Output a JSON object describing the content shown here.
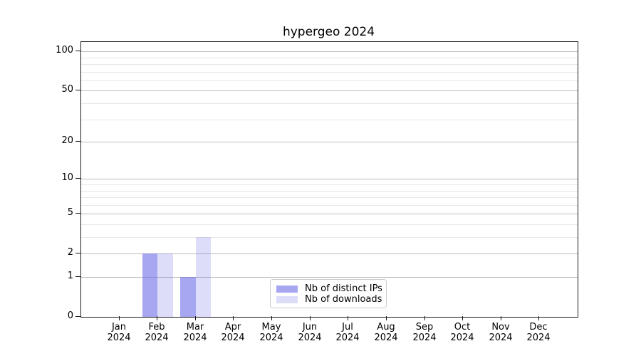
{
  "chart_data": {
    "type": "bar",
    "title": "hypergeo 2024",
    "x": {
      "months": [
        "Jan",
        "Feb",
        "Mar",
        "Apr",
        "May",
        "Jun",
        "Jul",
        "Aug",
        "Sep",
        "Oct",
        "Nov",
        "Dec"
      ],
      "year": "2024"
    },
    "series": [
      {
        "name": "Nb of distinct IPs",
        "color": "rgba(100,100,230,0.57)",
        "values": [
          0,
          2,
          1,
          0,
          0,
          0,
          0,
          0,
          0,
          0,
          0,
          0
        ]
      },
      {
        "name": "Nb of downloads",
        "color": "rgba(100,100,230,0.22)",
        "values": [
          0,
          2,
          3,
          0,
          0,
          0,
          0,
          0,
          0,
          0,
          0,
          0
        ]
      }
    ],
    "y_axis": {
      "scale": "log10(1+y)",
      "major_ticks": [
        0,
        1,
        2,
        5,
        10,
        20,
        50,
        100
      ],
      "minor_ticks": [
        3,
        4,
        6,
        7,
        8,
        9,
        30,
        40,
        60,
        70,
        80,
        90
      ],
      "max": 118
    },
    "grid": {
      "enabled": true,
      "major_color": "#bdbdbd",
      "minor_color": "#e7e7e7"
    },
    "legend": {
      "position": "lower center"
    }
  }
}
